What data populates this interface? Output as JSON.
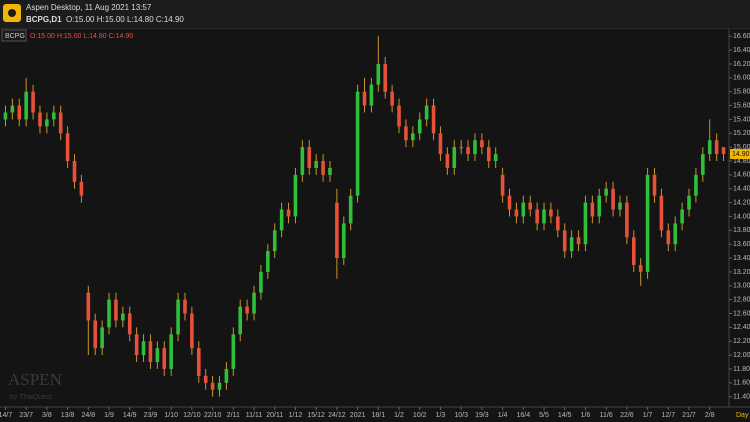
{
  "header": {
    "app_title": "Aspen Desktop, 11 Aug 2021 13:57",
    "symbol": "BCPG,D1",
    "ohlc": "O:15.00 H:15.00 L:14.80 C:14.90"
  },
  "watermark": {
    "brand": "ASPEN",
    "by": "by ThaiQuest"
  },
  "chart_data": {
    "type": "candlestick",
    "symbol": "BCPG",
    "legend_ohlc": "O:15.00 H:15.00 L:14.80 C:14.90",
    "x_unit": "Day",
    "up_color": "#2fbf3a",
    "down_color": "#e8503a",
    "wick_color": "#c8962e",
    "grid": false,
    "categories": [
      "14/7",
      null,
      null,
      "23/7",
      null,
      null,
      "3/8",
      null,
      null,
      "13/8",
      null,
      null,
      "24/8",
      null,
      null,
      "1/9",
      null,
      null,
      "14/9",
      null,
      null,
      "23/9",
      null,
      null,
      "1/10",
      null,
      null,
      "12/10",
      null,
      null,
      "22/10",
      null,
      null,
      "2/11",
      null,
      null,
      "11/11",
      null,
      null,
      "20/11",
      null,
      null,
      "1/12",
      null,
      null,
      "15/12",
      null,
      null,
      "24/12",
      null,
      null,
      "2021",
      null,
      null,
      "18/1",
      null,
      null,
      "1/2",
      null,
      null,
      "10/2",
      null,
      null,
      "1/3",
      null,
      null,
      "10/3",
      null,
      null,
      "19/3",
      null,
      null,
      "1/4",
      null,
      null,
      "16/4",
      null,
      null,
      "5/5",
      null,
      null,
      "14/5",
      null,
      null,
      "1/6",
      null,
      null,
      "11/6",
      null,
      null,
      "22/6",
      null,
      null,
      "1/7",
      null,
      null,
      "12/7",
      null,
      null,
      "21/7",
      null,
      null,
      "2/8",
      null,
      null
    ],
    "open": [
      15.4,
      15.5,
      15.6,
      15.4,
      15.8,
      15.5,
      15.3,
      15.4,
      15.5,
      15.2,
      14.8,
      14.5,
      12.9,
      12.5,
      12.1,
      12.4,
      12.8,
      12.5,
      12.6,
      12.3,
      12.0,
      12.2,
      11.9,
      12.1,
      11.8,
      12.3,
      12.8,
      12.6,
      12.1,
      11.7,
      11.6,
      11.5,
      11.6,
      11.8,
      12.3,
      12.7,
      12.6,
      12.9,
      13.2,
      13.5,
      13.8,
      14.1,
      14.0,
      14.6,
      15.0,
      14.7,
      14.8,
      14.6,
      14.2,
      13.4,
      13.9,
      14.3,
      15.8,
      15.6,
      15.9,
      16.2,
      15.8,
      15.6,
      15.3,
      15.1,
      15.2,
      15.4,
      15.6,
      15.2,
      14.9,
      14.7,
      15.0,
      15.0,
      14.9,
      15.1,
      15.0,
      14.8,
      14.6,
      14.3,
      14.1,
      14.0,
      14.2,
      14.1,
      13.9,
      14.1,
      14.0,
      13.8,
      13.5,
      13.7,
      13.6,
      14.2,
      14.0,
      14.3,
      14.4,
      14.1,
      14.2,
      13.7,
      13.3,
      13.2,
      14.6,
      14.3,
      13.8,
      13.6,
      13.9,
      14.1,
      14.3,
      14.6,
      14.9,
      15.1,
      15.0
    ],
    "high": [
      15.6,
      15.7,
      15.7,
      16.0,
      15.9,
      15.6,
      15.5,
      15.6,
      15.6,
      15.3,
      14.9,
      14.6,
      13.0,
      12.6,
      12.5,
      12.9,
      12.9,
      12.7,
      12.7,
      12.4,
      12.3,
      12.3,
      12.2,
      12.2,
      12.4,
      12.9,
      12.9,
      12.7,
      12.2,
      11.8,
      11.7,
      11.7,
      11.9,
      12.4,
      12.8,
      12.8,
      13.0,
      13.3,
      13.6,
      13.9,
      14.2,
      14.2,
      14.7,
      15.1,
      15.1,
      14.9,
      14.9,
      14.8,
      14.4,
      14.0,
      14.4,
      15.9,
      16.0,
      16.0,
      16.6,
      16.3,
      15.9,
      15.7,
      15.4,
      15.3,
      15.5,
      15.7,
      15.7,
      15.3,
      15.0,
      15.1,
      15.1,
      15.1,
      15.2,
      15.2,
      15.1,
      15.0,
      14.7,
      14.4,
      14.2,
      14.3,
      14.3,
      14.2,
      14.2,
      14.2,
      14.1,
      13.9,
      13.8,
      13.8,
      14.3,
      14.3,
      14.4,
      14.5,
      14.5,
      14.3,
      14.3,
      13.8,
      13.4,
      14.7,
      14.7,
      14.4,
      13.9,
      14.0,
      14.2,
      14.4,
      14.7,
      15.0,
      15.4,
      15.2,
      15.0
    ],
    "low": [
      15.3,
      15.4,
      15.3,
      15.3,
      15.4,
      15.2,
      15.2,
      15.3,
      15.1,
      14.7,
      14.4,
      14.2,
      12.0,
      12.0,
      12.0,
      12.3,
      12.4,
      12.4,
      12.2,
      11.9,
      11.9,
      11.8,
      11.8,
      11.7,
      11.7,
      12.2,
      12.5,
      12.0,
      11.6,
      11.5,
      11.4,
      11.4,
      11.5,
      11.7,
      12.2,
      12.5,
      12.5,
      12.8,
      13.1,
      13.4,
      13.7,
      13.9,
      13.9,
      14.5,
      14.6,
      14.6,
      14.5,
      14.5,
      13.1,
      13.3,
      13.8,
      14.2,
      15.5,
      15.5,
      15.8,
      15.7,
      15.5,
      15.2,
      15.0,
      15.0,
      15.1,
      15.3,
      15.1,
      14.8,
      14.6,
      14.6,
      14.9,
      14.8,
      14.8,
      14.9,
      14.7,
      14.7,
      14.2,
      14.0,
      13.9,
      13.9,
      14.0,
      13.8,
      13.8,
      13.9,
      13.7,
      13.4,
      13.4,
      13.5,
      13.5,
      13.9,
      13.9,
      14.2,
      14.0,
      14.0,
      13.6,
      13.2,
      13.0,
      13.1,
      14.2,
      13.7,
      13.5,
      13.5,
      13.8,
      14.0,
      14.2,
      14.5,
      14.8,
      14.8,
      14.8
    ],
    "close": [
      15.5,
      15.6,
      15.4,
      15.8,
      15.5,
      15.3,
      15.4,
      15.5,
      15.2,
      14.8,
      14.5,
      14.3,
      12.5,
      12.1,
      12.4,
      12.8,
      12.5,
      12.6,
      12.3,
      12.0,
      12.2,
      11.9,
      12.1,
      11.8,
      12.3,
      12.8,
      12.6,
      12.1,
      11.7,
      11.6,
      11.5,
      11.6,
      11.8,
      12.3,
      12.7,
      12.6,
      12.9,
      13.2,
      13.5,
      13.8,
      14.1,
      14.0,
      14.6,
      15.0,
      14.7,
      14.8,
      14.6,
      14.7,
      13.4,
      13.9,
      14.3,
      15.8,
      15.6,
      15.9,
      16.2,
      15.8,
      15.6,
      15.3,
      15.1,
      15.2,
      15.4,
      15.6,
      15.2,
      14.9,
      14.7,
      15.0,
      15.0,
      14.9,
      15.1,
      15.0,
      14.8,
      14.9,
      14.3,
      14.1,
      14.0,
      14.2,
      14.1,
      13.9,
      14.1,
      14.0,
      13.8,
      13.5,
      13.7,
      13.6,
      14.2,
      14.0,
      14.3,
      14.4,
      14.1,
      14.2,
      13.7,
      13.3,
      13.2,
      14.6,
      14.3,
      13.8,
      13.6,
      13.9,
      14.1,
      14.3,
      14.6,
      14.9,
      15.1,
      14.9,
      14.9
    ],
    "last_price": {
      "value": 14.9,
      "label": "14.90"
    },
    "ylim": [
      11.28,
      16.69
    ],
    "yticks": [
      {
        "value": 11.4,
        "label": "11.40"
      },
      {
        "value": 11.6,
        "label": "11.60"
      },
      {
        "value": 11.8,
        "label": "11.80"
      },
      {
        "value": 12.0,
        "label": "12.00"
      },
      {
        "value": 12.2,
        "label": "12.20"
      },
      {
        "value": 12.4,
        "label": "12.40"
      },
      {
        "value": 12.6,
        "label": "12.60"
      },
      {
        "value": 12.8,
        "label": "12.80"
      },
      {
        "value": 13.0,
        "label": "13.00"
      },
      {
        "value": 13.2,
        "label": "13.20"
      },
      {
        "value": 13.4,
        "label": "13.40"
      },
      {
        "value": 13.6,
        "label": "13.60"
      },
      {
        "value": 13.8,
        "label": "13.80"
      },
      {
        "value": 14.0,
        "label": "14.00"
      },
      {
        "value": 14.2,
        "label": "14.20"
      },
      {
        "value": 14.4,
        "label": "14.40"
      },
      {
        "value": 14.6,
        "label": "14.60"
      },
      {
        "value": 14.8,
        "label": "14.80"
      },
      {
        "value": 15.0,
        "label": "15.00"
      },
      {
        "value": 15.2,
        "label": "15.20"
      },
      {
        "value": 15.4,
        "label": "15.40"
      },
      {
        "value": 15.6,
        "label": "15.60"
      },
      {
        "value": 15.8,
        "label": "15.80"
      },
      {
        "value": 16.0,
        "label": "16.00"
      },
      {
        "value": 16.2,
        "label": "16.20"
      },
      {
        "value": 16.4,
        "label": "16.40"
      },
      {
        "value": 16.6,
        "label": "16.60"
      }
    ]
  }
}
